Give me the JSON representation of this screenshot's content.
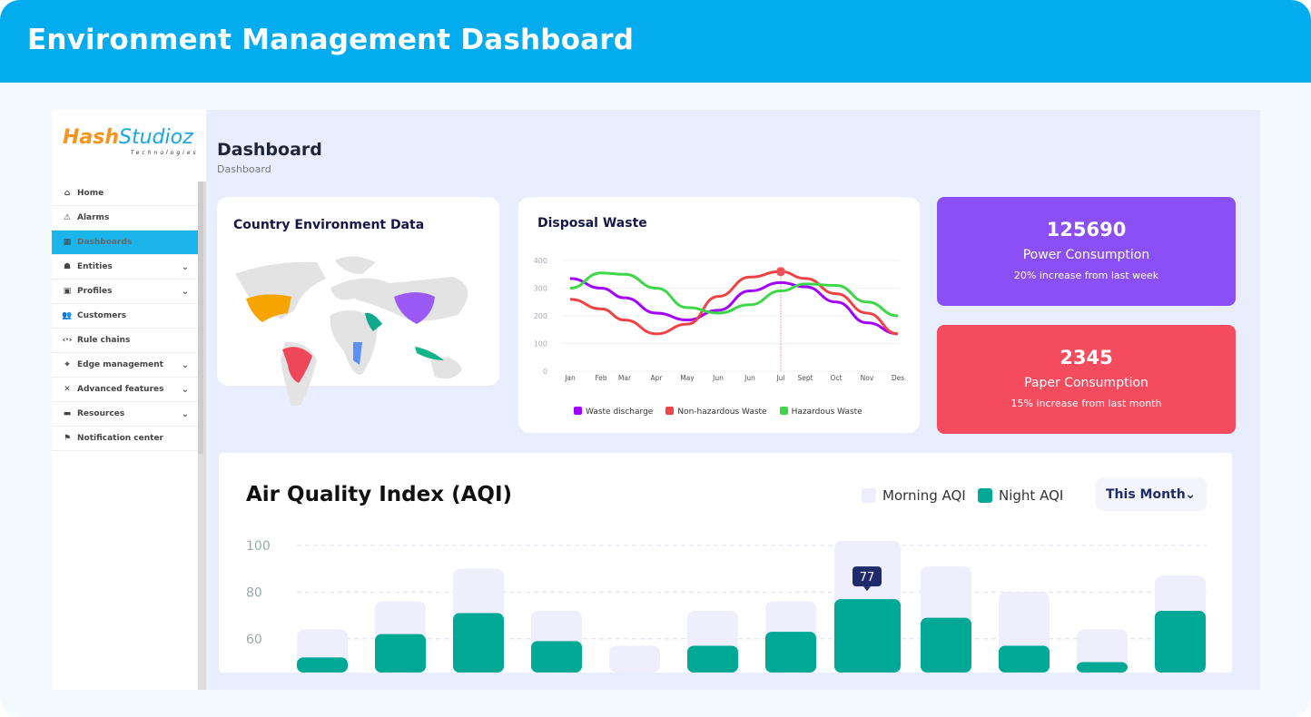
{
  "banner": {
    "title": "Environment Management Dashboard"
  },
  "logo": {
    "brand": "HashStudioz",
    "sub": "Technologies"
  },
  "sidebar": {
    "items": [
      {
        "label": "Home",
        "icon": "home-icon",
        "glyph": "⌂",
        "chev": false,
        "active": false
      },
      {
        "label": "Alarms",
        "icon": "warning-icon",
        "glyph": "⚠",
        "chev": false,
        "active": false
      },
      {
        "label": "Dashboards",
        "icon": "dashboard-icon",
        "glyph": "▦",
        "chev": false,
        "active": true
      },
      {
        "label": "Entities",
        "icon": "entities-icon",
        "glyph": "☗",
        "chev": true,
        "active": false
      },
      {
        "label": "Profiles",
        "icon": "profiles-icon",
        "glyph": "▣",
        "chev": true,
        "active": false
      },
      {
        "label": "Customers",
        "icon": "customers-icon",
        "glyph": "👥",
        "chev": false,
        "active": false
      },
      {
        "label": "Rule chains",
        "icon": "code-icon",
        "glyph": "‹·›",
        "chev": false,
        "active": false
      },
      {
        "label": "Edge management",
        "icon": "antenna-icon",
        "glyph": "⌖",
        "chev": true,
        "active": false
      },
      {
        "label": "Advanced features",
        "icon": "tools-icon",
        "glyph": "✕",
        "chev": true,
        "active": false
      },
      {
        "label": "Resources",
        "icon": "folder-icon",
        "glyph": "▬",
        "chev": true,
        "active": false
      },
      {
        "label": "Notification center",
        "icon": "notification-icon",
        "glyph": "⚑",
        "chev": false,
        "active": false
      }
    ]
  },
  "page": {
    "title": "Dashboard",
    "breadcrumb": "Dashboard"
  },
  "map_card": {
    "title": "Country Environment Data",
    "highlight_colors": {
      "usa": "#f7a400",
      "brazil": "#f0465a",
      "saudi": "#0fa88c",
      "china": "#9b59f5",
      "africa": "#5b8ff9",
      "indonesia": "#13b38a"
    }
  },
  "waste": {
    "title": "Disposal Waste"
  },
  "stats": [
    {
      "value": "125690",
      "label": "Power Consumption",
      "sub": "20% increase from last week",
      "color": "#8b4ff7"
    },
    {
      "value": "2345",
      "label": "Paper Consumption",
      "sub": "15% increase from last month",
      "color": "#f54b5e"
    }
  ],
  "aqi": {
    "title": "Air Quality Index (AQI)",
    "legend_morning": "Morning AQI",
    "legend_night": "Night AQI",
    "select": "This Month",
    "tooltip": "77"
  },
  "chart_data": [
    {
      "type": "line",
      "title": "Disposal Waste",
      "categories": [
        "Jan",
        "Feb",
        "Mar",
        "Apr",
        "May",
        "Jun",
        "Jun",
        "Jul",
        "Sept",
        "Oct",
        "Nov",
        "Des"
      ],
      "yticks": [
        0,
        100,
        200,
        300,
        400
      ],
      "ylim": [
        0,
        400
      ],
      "legend": "bottom",
      "highlight_category_index": 7,
      "series": [
        {
          "name": "Waste discharge",
          "color": "#a100ff",
          "values": [
            335,
            300,
            265,
            210,
            185,
            220,
            290,
            320,
            305,
            250,
            175,
            135
          ]
        },
        {
          "name": "Non-hazardous Waste",
          "color": "#f04343",
          "values": [
            260,
            225,
            185,
            135,
            170,
            270,
            340,
            360,
            335,
            280,
            210,
            135
          ]
        },
        {
          "name": "Hazardous Waste",
          "color": "#3ed64a",
          "values": [
            300,
            355,
            350,
            300,
            230,
            210,
            240,
            290,
            315,
            310,
            250,
            200
          ]
        }
      ]
    },
    {
      "type": "bar",
      "title": "Air Quality Index (AQI)",
      "yticks": [
        60,
        80,
        100
      ],
      "grid": true,
      "legend": "top-right",
      "highlight_index": 7,
      "series": [
        {
          "name": "Morning AQI",
          "color": "#efeefc",
          "values": [
            64,
            76,
            90,
            72,
            57,
            72,
            76,
            102,
            91,
            80,
            64,
            87
          ]
        },
        {
          "name": "Night AQI",
          "color": "#00a896",
          "values": [
            52,
            62,
            71,
            59,
            null,
            57,
            63,
            77,
            69,
            57,
            50,
            72
          ]
        }
      ]
    }
  ]
}
